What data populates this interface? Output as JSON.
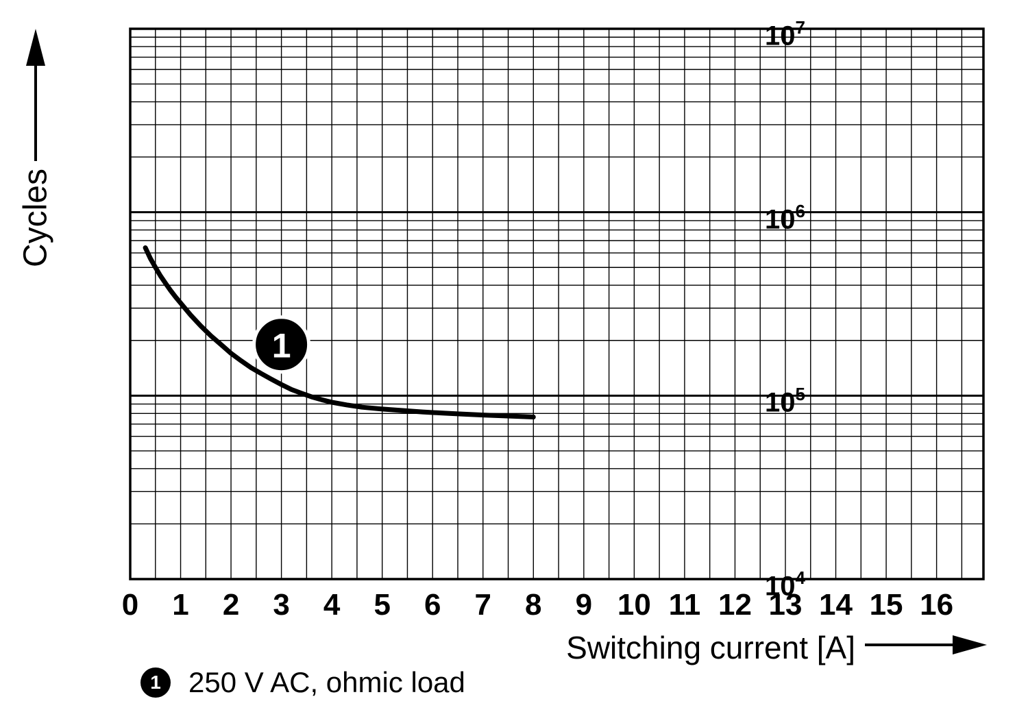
{
  "chart_data": {
    "type": "line",
    "title": "",
    "xlabel": "Switching current [A]",
    "ylabel": "Cycles",
    "grid": "on",
    "x_axis": {
      "min": 0,
      "max": 16.93,
      "ticks": [
        0,
        1,
        2,
        3,
        4,
        5,
        6,
        7,
        8,
        9,
        10,
        11,
        12,
        13,
        14,
        15,
        16
      ],
      "minor_step": 0.5
    },
    "y_axis": {
      "scale": "log",
      "min_exp": 4,
      "max_exp": 7,
      "tick_base": "10",
      "tick_exponents": [
        7,
        6,
        5,
        4
      ]
    },
    "series": [
      {
        "name": "250 V AC, ohmic load",
        "marker": "1",
        "color": "#000000",
        "points": [
          [
            0.3,
            640000
          ],
          [
            0.4,
            560000
          ],
          [
            0.5,
            500000
          ],
          [
            0.6,
            450000
          ],
          [
            0.7,
            410000
          ],
          [
            0.8,
            375000
          ],
          [
            0.9,
            345000
          ],
          [
            1.0,
            320000
          ],
          [
            1.2,
            275000
          ],
          [
            1.4,
            240000
          ],
          [
            1.6,
            212000
          ],
          [
            1.8,
            190000
          ],
          [
            2.0,
            170000
          ],
          [
            2.2,
            155000
          ],
          [
            2.4,
            142000
          ],
          [
            2.6,
            132000
          ],
          [
            2.8,
            123000
          ],
          [
            3.0,
            115000
          ],
          [
            3.2,
            108000
          ],
          [
            3.4,
            103000
          ],
          [
            3.6,
            98500
          ],
          [
            3.8,
            95000
          ],
          [
            4.0,
            92000
          ],
          [
            4.3,
            89000
          ],
          [
            4.6,
            86500
          ],
          [
            5.0,
            84500
          ],
          [
            5.4,
            83000
          ],
          [
            5.8,
            81500
          ],
          [
            6.2,
            80300
          ],
          [
            6.6,
            79300
          ],
          [
            7.0,
            78400
          ],
          [
            7.4,
            77600
          ],
          [
            7.8,
            76900
          ],
          [
            8.0,
            76500
          ]
        ]
      }
    ],
    "annotations": [
      {
        "label": "1",
        "x": 3.0,
        "y": 190000
      }
    ],
    "ink_color": "#000000"
  },
  "legend": {
    "items": [
      {
        "marker": "1",
        "label": "250 V AC, ohmic load"
      }
    ]
  }
}
